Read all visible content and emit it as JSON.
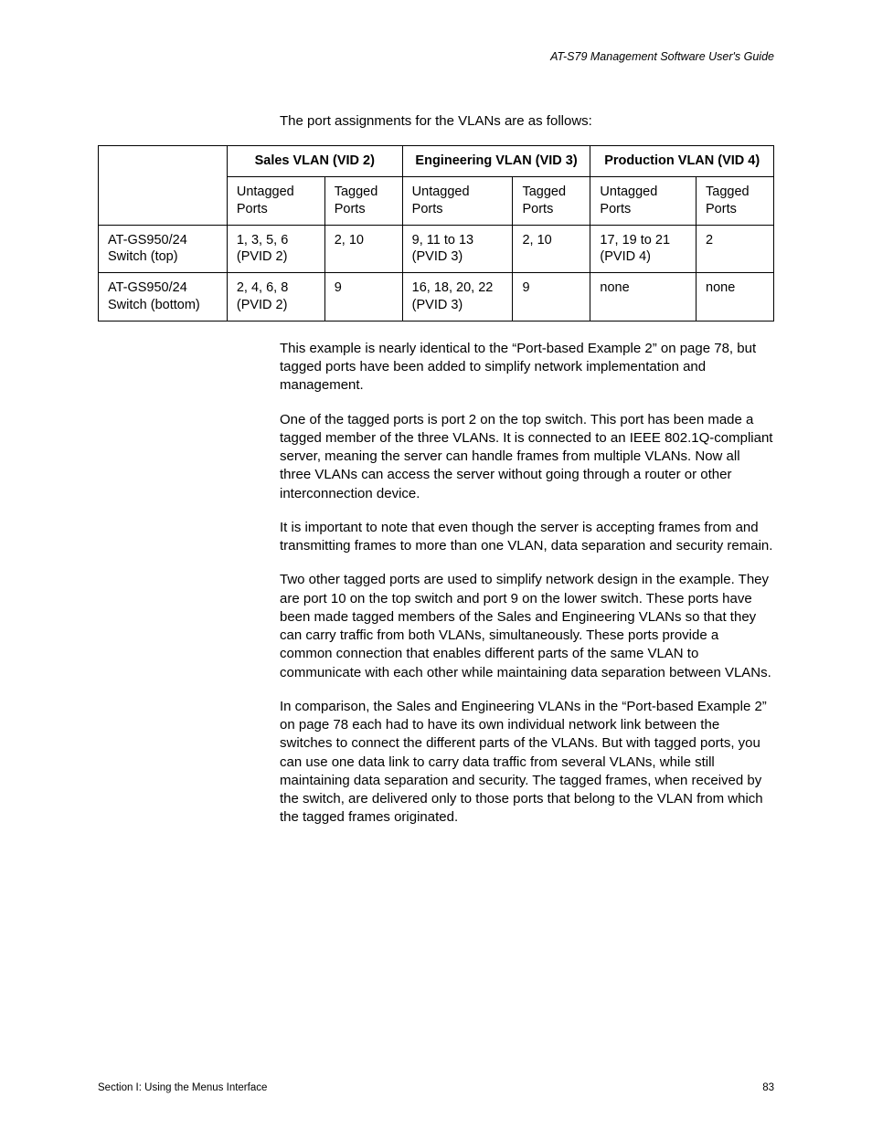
{
  "header": {
    "guide_title": "AT-S79 Management Software User's Guide"
  },
  "intro": "The port assignments for the VLANs are as follows:",
  "table": {
    "group_headers": {
      "sales": "Sales VLAN (VID 2)",
      "engineering": "Engineering VLAN (VID 3)",
      "production": "Production VLAN (VID 4)"
    },
    "sub_headers": {
      "untagged": "Untagged Ports",
      "tagged": "Tagged Ports"
    },
    "rows": [
      {
        "label": "AT-GS950/24 Switch (top)",
        "sales_untagged": "1, 3, 5, 6 (PVID 2)",
        "sales_tagged": "2, 10",
        "eng_untagged": "9, 11 to 13 (PVID 3)",
        "eng_tagged": "2, 10",
        "prod_untagged": "17, 19 to 21 (PVID 4)",
        "prod_tagged": "2"
      },
      {
        "label": "AT-GS950/24 Switch (bottom)",
        "sales_untagged": "2, 4, 6, 8 (PVID 2)",
        "sales_tagged": "9",
        "eng_untagged": "16, 18, 20, 22 (PVID 3)",
        "eng_tagged": "9",
        "prod_untagged": "none",
        "prod_tagged": "none"
      }
    ]
  },
  "paragraphs": {
    "p1": "This example is nearly identical to the “Port-based Example 2” on page 78, but tagged ports have been added to simplify network implementation and management.",
    "p2": "One of the tagged ports is port 2 on the top switch. This port has been made a tagged member of the three VLANs. It is connected to an IEEE 802.1Q-compliant server, meaning the server can handle frames from multiple VLANs. Now all three VLANs can access the server without going through a router or other interconnection device.",
    "p3": "It is important to note that even though the server is accepting frames from and transmitting frames to more than one VLAN, data separation and security remain.",
    "p4": "Two other tagged ports are used to simplify network design in the example. They are port 10 on the top switch and port 9 on the lower switch. These ports have been made tagged members of the Sales and Engineering VLANs so that they can carry traffic from both VLANs, simultaneously. These ports provide a common connection that enables different parts of the same VLAN to communicate with each other while maintaining data separation between VLANs.",
    "p5": "In comparison, the Sales and Engineering VLANs in the “Port-based Example 2” on page 78 each had to have its own individual network link between the switches to connect the different parts of the VLANs. But with tagged ports, you can use one data link to carry data traffic from several VLANs, while still maintaining data separation and security. The tagged frames, when received by the switch, are delivered only to those ports that belong to the VLAN from which the tagged frames originated."
  },
  "footer": {
    "section": "Section I: Using the Menus Interface",
    "page": "83"
  }
}
